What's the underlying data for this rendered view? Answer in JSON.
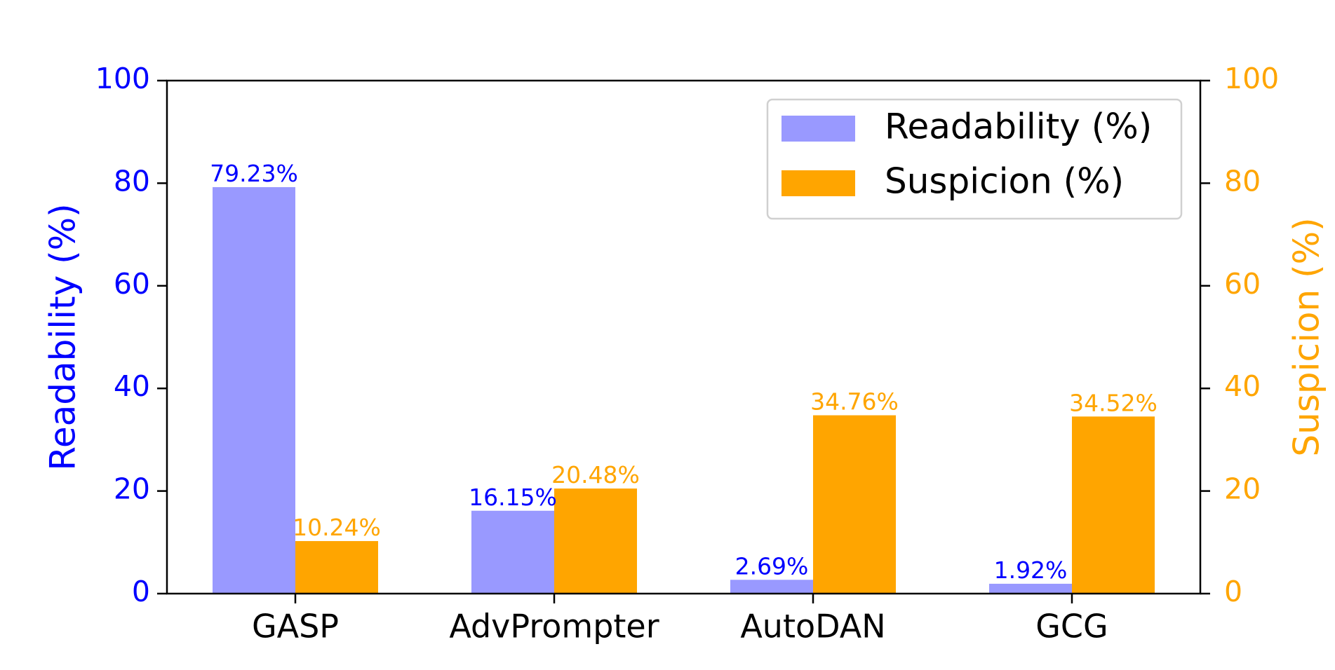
{
  "chart_data": {
    "type": "bar",
    "title": "",
    "categories": [
      "GASP",
      "AdvPrompter",
      "AutoDAN",
      "GCG"
    ],
    "series": [
      {
        "name": "Readability (%)",
        "axis": "left",
        "color": "#9999ff",
        "label_color": "#0000ff",
        "values": [
          79.23,
          16.15,
          2.69,
          1.92
        ],
        "value_labels": [
          "79.23%",
          "16.15%",
          "2.69%",
          "1.92%"
        ]
      },
      {
        "name": "Suspicion (%)",
        "axis": "right",
        "color": "#ffa500",
        "label_color": "#ffa500",
        "values": [
          10.24,
          20.48,
          34.76,
          34.52
        ],
        "value_labels": [
          "10.24%",
          "20.48%",
          "34.76%",
          "34.52%"
        ]
      }
    ],
    "y_left": {
      "label": "Readability (%)",
      "color": "#0000ff",
      "ylim": [
        0,
        100
      ],
      "ticks": [
        0,
        20,
        40,
        60,
        80,
        100
      ]
    },
    "y_right": {
      "label": "Suspicion (%)",
      "color": "#ffa500",
      "ylim": [
        0,
        100
      ],
      "ticks": [
        0,
        20,
        40,
        60,
        80,
        100
      ]
    },
    "xlabel": "",
    "grid": false,
    "legend": {
      "position": "top-right",
      "entries": [
        "Readability (%)",
        "Suspicion (%)"
      ]
    }
  }
}
